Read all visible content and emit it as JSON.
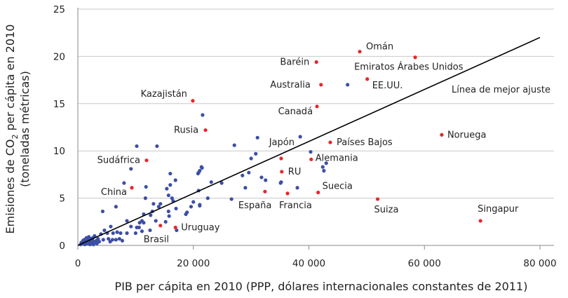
{
  "chart_data": {
    "type": "scatter",
    "title": "",
    "xlabel": "PIB per cápita en 2010 (PPP, dólares internacionales constantes de 2011)",
    "ylabel_line1": "Emisiones de CO",
    "ylabel_sub": "2",
    "ylabel_line1_rest": " per cápita en 2010",
    "ylabel_line2": "(toneladas métricas)",
    "xlim": [
      0,
      80000
    ],
    "ylim": [
      0,
      25
    ],
    "xticks": [
      0,
      20000,
      40000,
      60000,
      80000
    ],
    "xtick_labels": [
      "0",
      "20 000",
      "40 000",
      "60 000",
      "80 000"
    ],
    "yticks": [
      0,
      5,
      10,
      15,
      20,
      25
    ],
    "ytick_labels": [
      "0",
      "5",
      "10",
      "15",
      "20",
      "25"
    ],
    "grid": "horizontal",
    "colors": {
      "highlighted": "#e8262a",
      "other": "#3c4fa6",
      "line": "#000000",
      "grid": "#c8c8c8"
    },
    "best_fit_line": {
      "label": "Línea de mejor ajuste",
      "x": [
        0,
        80000
      ],
      "y": [
        0,
        22
      ]
    },
    "highlighted": [
      {
        "label": "Kazajistán",
        "x": 19900,
        "y": 15.3
      },
      {
        "label": "Rusia",
        "x": 22100,
        "y": 12.2
      },
      {
        "label": "Sudáfrica",
        "x": 11900,
        "y": 9.0
      },
      {
        "label": "China",
        "x": 9350,
        "y": 6.1
      },
      {
        "label": "Brasil",
        "x": 14300,
        "y": 2.1
      },
      {
        "label": "Uruguay",
        "x": 16900,
        "y": 1.9
      },
      {
        "label": "Baréin",
        "x": 41300,
        "y": 19.4
      },
      {
        "label": "Omán",
        "x": 48800,
        "y": 20.5
      },
      {
        "label": "Emiratos Árabes Unidos",
        "x": 58400,
        "y": 19.9
      },
      {
        "label": "Australia",
        "x": 42100,
        "y": 17.0
      },
      {
        "label": "EE.UU.",
        "x": 50100,
        "y": 17.6
      },
      {
        "label": "Canadá",
        "x": 41400,
        "y": 14.7
      },
      {
        "label": "Países Bajos",
        "x": 43700,
        "y": 10.9
      },
      {
        "label": "Japón",
        "x": 35200,
        "y": 9.2
      },
      {
        "label": "Alemania",
        "x": 40400,
        "y": 9.1
      },
      {
        "label": "RU",
        "x": 35300,
        "y": 7.8
      },
      {
        "label": "España",
        "x": 32400,
        "y": 5.7
      },
      {
        "label": "Francia",
        "x": 36300,
        "y": 5.5
      },
      {
        "label": "Suecia",
        "x": 41600,
        "y": 5.6
      },
      {
        "label": "Suiza",
        "x": 51900,
        "y": 4.9
      },
      {
        "label": "Noruega",
        "x": 63000,
        "y": 11.7
      },
      {
        "label": "Singapur",
        "x": 69700,
        "y": 2.6
      }
    ],
    "other_points": [
      [
        21600,
        13.8
      ],
      [
        10200,
        10.5
      ],
      [
        13700,
        10.5
      ],
      [
        9200,
        8.1
      ],
      [
        21500,
        8.2
      ],
      [
        20900,
        7.7
      ],
      [
        16000,
        7.6
      ],
      [
        8000,
        6.6
      ],
      [
        16900,
        6.9
      ],
      [
        11800,
        6.2
      ],
      [
        15400,
        6.0
      ],
      [
        16000,
        6.4
      ],
      [
        11700,
        5.0
      ],
      [
        15700,
        5.3
      ],
      [
        16300,
        5.0
      ],
      [
        20900,
        5.8
      ],
      [
        22500,
        5.0
      ],
      [
        6600,
        4.1
      ],
      [
        13100,
        4.4
      ],
      [
        14300,
        4.4
      ],
      [
        14000,
        4.1
      ],
      [
        17000,
        3.9
      ],
      [
        16500,
        4.7
      ],
      [
        20000,
        4.6
      ],
      [
        21100,
        4.2
      ],
      [
        4300,
        3.6
      ],
      [
        11400,
        3.3
      ],
      [
        12900,
        3.6
      ],
      [
        12600,
        3.2
      ],
      [
        15700,
        3.6
      ],
      [
        15800,
        3.1
      ],
      [
        18900,
        3.5
      ],
      [
        18700,
        3.3
      ],
      [
        19600,
        4.1
      ],
      [
        8500,
        2.6
      ],
      [
        10700,
        2.4
      ],
      [
        11100,
        2.6
      ],
      [
        11400,
        2.4
      ],
      [
        9200,
        2.0
      ],
      [
        10200,
        1.9
      ],
      [
        10600,
        1.9
      ],
      [
        10000,
        1.3
      ],
      [
        11100,
        1.5
      ],
      [
        12500,
        1.6
      ],
      [
        13500,
        2.6
      ],
      [
        15200,
        2.5
      ],
      [
        17100,
        1.6
      ],
      [
        5700,
        2.0
      ],
      [
        4600,
        1.6
      ],
      [
        5100,
        1.3
      ],
      [
        6100,
        1.3
      ],
      [
        6800,
        1.4
      ],
      [
        7400,
        1.3
      ],
      [
        8500,
        1.3
      ],
      [
        2900,
        1.0
      ],
      [
        4000,
        1.2
      ],
      [
        5300,
        0.7
      ],
      [
        6000,
        0.6
      ],
      [
        6600,
        0.6
      ],
      [
        7200,
        0.7
      ],
      [
        7700,
        0.5
      ],
      [
        5600,
        0.4
      ],
      [
        3500,
        0.7
      ],
      [
        4400,
        0.6
      ],
      [
        500,
        0.1
      ],
      [
        800,
        0.2
      ],
      [
        1000,
        0.3
      ],
      [
        1200,
        0.1
      ],
      [
        1400,
        0.4
      ],
      [
        1600,
        0.2
      ],
      [
        1800,
        0.6
      ],
      [
        2000,
        0.3
      ],
      [
        2200,
        0.5
      ],
      [
        2400,
        0.2
      ],
      [
        2600,
        0.8
      ],
      [
        2800,
        0.4
      ],
      [
        3000,
        0.3
      ],
      [
        1100,
        0.6
      ],
      [
        1500,
        0.8
      ],
      [
        1900,
        0.9
      ],
      [
        2300,
        0.7
      ],
      [
        2700,
        0.1
      ],
      [
        3200,
        0.5
      ],
      [
        900,
        0.5
      ],
      [
        1300,
        0.2
      ],
      [
        1700,
        0.4
      ],
      [
        2100,
        0.1
      ],
      [
        600,
        0.3
      ],
      [
        2500,
        0.6
      ],
      [
        3300,
        0.2
      ],
      [
        3700,
        0.4
      ],
      [
        700,
        0.2
      ],
      [
        31100,
        11.4
      ],
      [
        38500,
        11.5
      ],
      [
        27100,
        10.6
      ],
      [
        30800,
        9.7
      ],
      [
        30000,
        9.2
      ],
      [
        40300,
        9.9
      ],
      [
        21400,
        8.3
      ],
      [
        21100,
        7.9
      ],
      [
        20800,
        7.6
      ],
      [
        28500,
        7.4
      ],
      [
        29600,
        7.7
      ],
      [
        23100,
        6.7
      ],
      [
        24900,
        6.6
      ],
      [
        31800,
        7.2
      ],
      [
        32500,
        6.9
      ],
      [
        35200,
        6.7
      ],
      [
        35100,
        6.6
      ],
      [
        38000,
        6.1
      ],
      [
        42400,
        8.3
      ],
      [
        43000,
        8.7
      ],
      [
        42600,
        7.9
      ],
      [
        29000,
        6.1
      ],
      [
        26600,
        4.9
      ],
      [
        21100,
        4.3
      ],
      [
        46700,
        17.0
      ]
    ]
  }
}
